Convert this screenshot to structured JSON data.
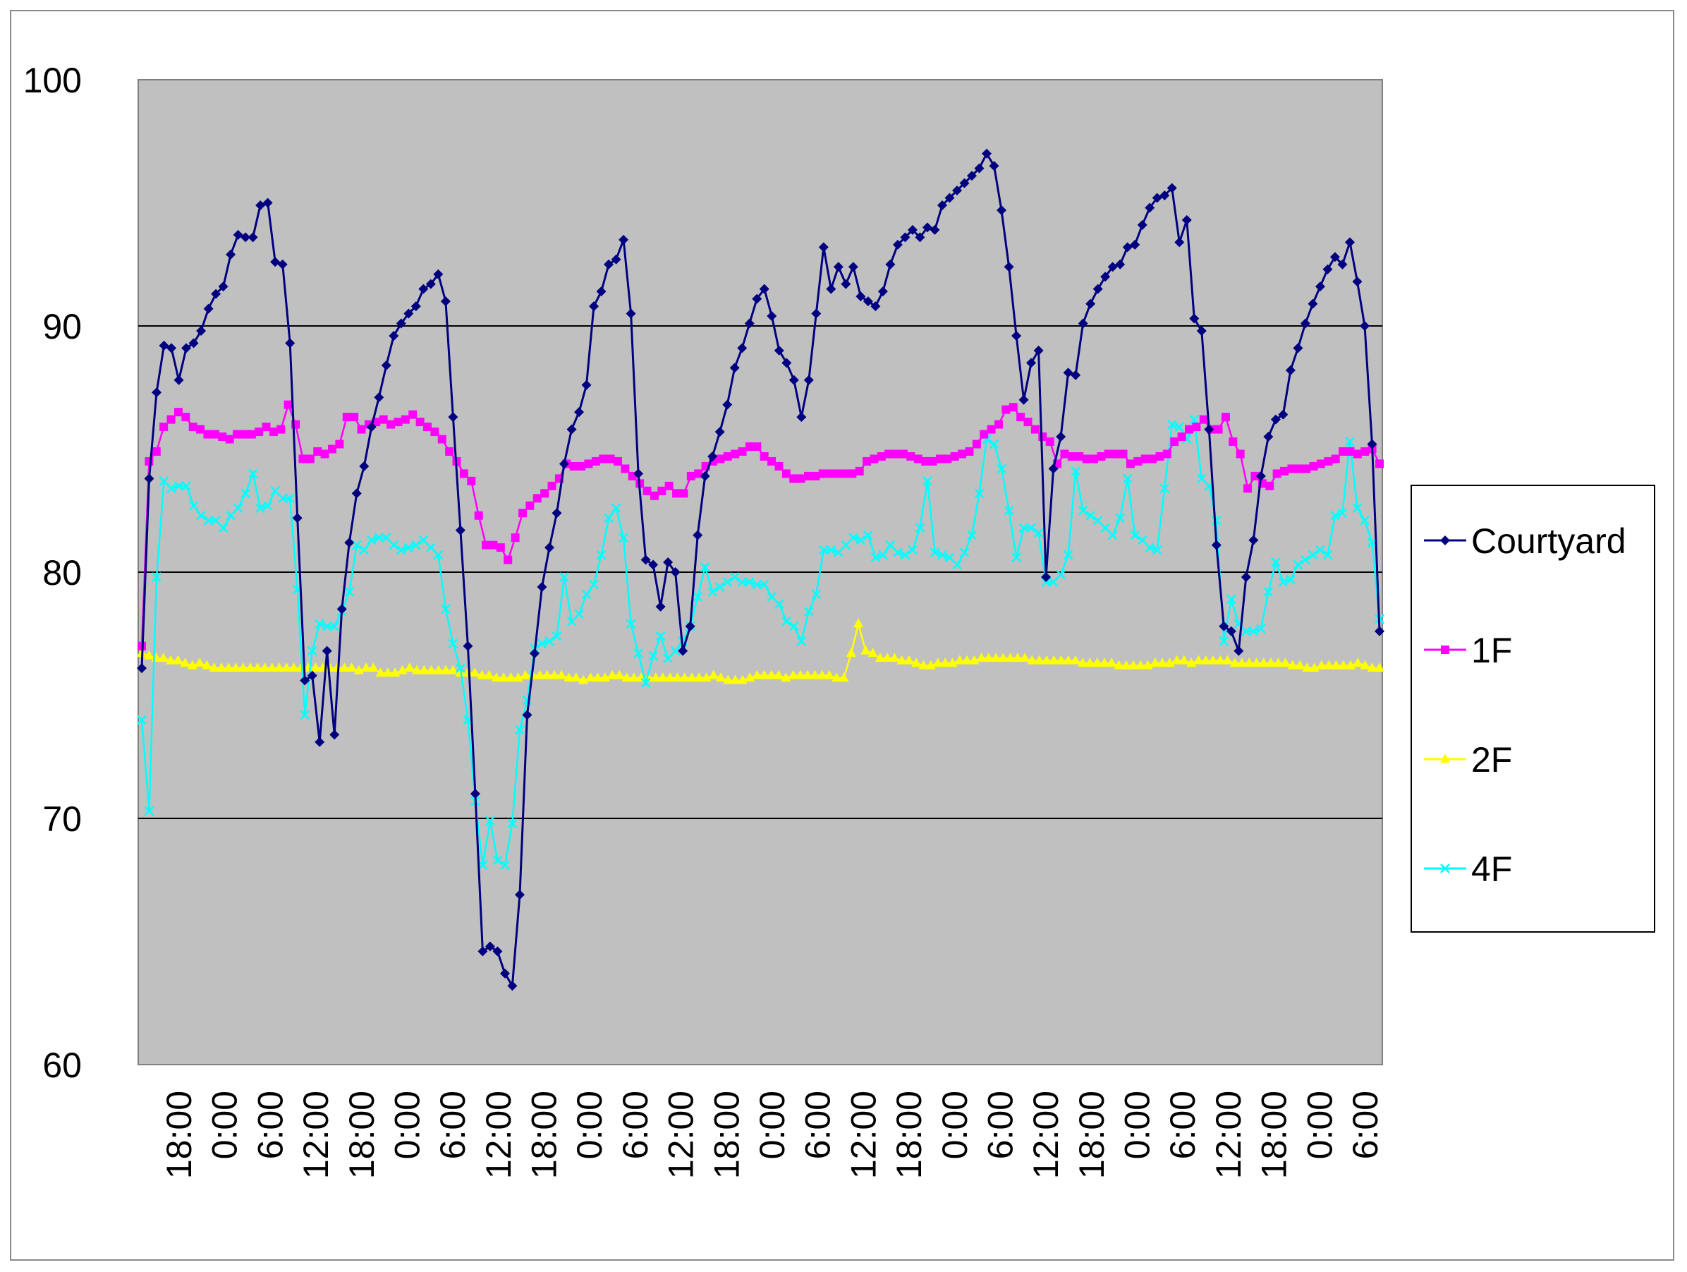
{
  "chart_data": {
    "type": "line",
    "title": "",
    "xlabel": "",
    "ylabel": "",
    "ylim": [
      60,
      100
    ],
    "yticks": [
      60,
      70,
      80,
      90,
      100
    ],
    "grid": true,
    "plot_background": "#c0c0c0",
    "legend_position": "right",
    "x_tick_labels": [
      "18:00",
      "0:00",
      "6:00",
      "12:00",
      "18:00",
      "0:00",
      "6:00",
      "12:00",
      "18:00",
      "0:00",
      "6:00",
      "12:00",
      "18:00",
      "0:00",
      "6:00",
      "12:00",
      "18:00",
      "0:00",
      "6:00",
      "12:00",
      "18:00",
      "0:00",
      "6:00",
      "12:00",
      "18:00",
      "0:00",
      "6:00"
    ],
    "series": [
      {
        "name": "Courtyard",
        "color": "#000080",
        "marker": "diamond",
        "values": [
          76.1,
          83.8,
          87.3,
          89.2,
          89.1,
          87.8,
          89.1,
          89.3,
          89.8,
          90.7,
          91.3,
          91.6,
          92.9,
          93.7,
          93.6,
          93.6,
          94.9,
          95.0,
          92.6,
          92.5,
          89.3,
          82.2,
          75.6,
          75.8,
          73.1,
          76.8,
          73.4,
          78.5,
          81.2,
          83.2,
          84.3,
          85.9,
          87.1,
          88.4,
          89.6,
          90.1,
          90.5,
          90.8,
          91.5,
          91.7,
          92.1,
          91.0,
          86.3,
          81.7,
          77.0,
          71.0,
          64.6,
          64.8,
          64.6,
          63.7,
          63.2,
          66.9,
          74.2,
          76.7,
          79.4,
          81.0,
          82.4,
          84.4,
          85.8,
          86.5,
          87.6,
          90.8,
          91.4,
          92.5,
          92.7,
          93.5,
          90.5,
          84.0,
          80.5,
          80.3,
          78.6,
          80.4,
          80.0,
          76.8,
          77.8,
          81.5,
          83.9,
          84.7,
          85.7,
          86.8,
          88.3,
          89.1,
          90.1,
          91.1,
          91.5,
          90.4,
          89.0,
          88.5,
          87.8,
          86.3,
          87.8,
          90.5,
          93.2,
          91.5,
          92.4,
          91.7,
          92.4,
          91.2,
          91.0,
          90.8,
          91.4,
          92.5,
          93.3,
          93.6,
          93.9,
          93.6,
          94.0,
          93.9,
          94.9,
          95.2,
          95.5,
          95.8,
          96.1,
          96.4,
          97.0,
          96.5,
          94.7,
          92.4,
          89.6,
          87.0,
          88.5,
          89.0,
          79.8,
          84.2,
          85.5,
          88.1,
          88.0,
          90.1,
          90.9,
          91.5,
          92.0,
          92.4,
          92.5,
          93.2,
          93.3,
          94.1,
          94.8,
          95.2,
          95.3,
          95.6,
          93.4,
          94.3,
          90.3,
          89.8,
          85.8,
          81.1,
          77.8,
          77.6,
          76.8,
          79.8,
          81.3,
          83.9,
          85.5,
          86.2,
          86.4,
          88.2,
          89.1,
          90.1,
          90.9,
          91.6,
          92.3,
          92.8,
          92.5,
          93.4,
          91.8,
          90.0,
          85.2,
          77.6
        ]
      },
      {
        "name": "1F",
        "color": "#ff00ff",
        "marker": "square",
        "values": [
          77.0,
          84.5,
          84.9,
          85.9,
          86.2,
          86.5,
          86.3,
          85.9,
          85.8,
          85.6,
          85.6,
          85.5,
          85.4,
          85.6,
          85.6,
          85.6,
          85.7,
          85.9,
          85.7,
          85.8,
          86.8,
          86.0,
          84.6,
          84.6,
          84.9,
          84.8,
          85.0,
          85.2,
          86.3,
          86.3,
          85.8,
          86.0,
          86.1,
          86.2,
          86.0,
          86.1,
          86.2,
          86.4,
          86.1,
          85.9,
          85.7,
          85.4,
          84.9,
          84.5,
          84.0,
          83.7,
          82.3,
          81.1,
          81.1,
          81.0,
          80.5,
          81.4,
          82.4,
          82.7,
          83.0,
          83.2,
          83.5,
          83.8,
          84.4,
          84.3,
          84.3,
          84.4,
          84.5,
          84.6,
          84.6,
          84.5,
          84.2,
          83.9,
          83.6,
          83.3,
          83.1,
          83.3,
          83.5,
          83.2,
          83.2,
          83.9,
          84.0,
          84.3,
          84.5,
          84.6,
          84.7,
          84.8,
          84.9,
          85.1,
          85.1,
          84.7,
          84.5,
          84.3,
          84.0,
          83.8,
          83.8,
          83.9,
          83.9,
          84.0,
          84.0,
          84.0,
          84.0,
          84.0,
          84.1,
          84.5,
          84.6,
          84.7,
          84.8,
          84.8,
          84.8,
          84.7,
          84.6,
          84.5,
          84.5,
          84.6,
          84.6,
          84.7,
          84.8,
          84.9,
          85.2,
          85.6,
          85.8,
          86.0,
          86.6,
          86.7,
          86.3,
          86.1,
          85.8,
          85.5,
          85.3,
          84.4,
          84.8,
          84.7,
          84.7,
          84.6,
          84.6,
          84.7,
          84.8,
          84.8,
          84.8,
          84.4,
          84.5,
          84.6,
          84.6,
          84.7,
          84.8,
          85.3,
          85.5,
          85.8,
          85.9,
          86.2,
          85.8,
          85.8,
          86.3,
          85.3,
          84.8,
          83.4,
          83.9,
          83.6,
          83.5,
          84.0,
          84.1,
          84.2,
          84.2,
          84.2,
          84.3,
          84.4,
          84.5,
          84.6,
          84.9,
          84.9,
          84.8,
          84.9,
          85.0,
          84.4
        ]
      },
      {
        "name": "2F",
        "color": "#ffff00",
        "marker": "triangle",
        "values": [
          76.7,
          76.6,
          76.5,
          76.5,
          76.4,
          76.4,
          76.3,
          76.2,
          76.3,
          76.2,
          76.1,
          76.1,
          76.1,
          76.1,
          76.1,
          76.1,
          76.1,
          76.1,
          76.1,
          76.1,
          76.1,
          76.1,
          76.1,
          76.1,
          76.1,
          76.1,
          76.1,
          76.1,
          76.1,
          76.1,
          76.0,
          76.1,
          76.1,
          75.9,
          75.9,
          75.9,
          76.0,
          76.1,
          76.0,
          76.0,
          76.0,
          76.0,
          76.0,
          76.0,
          75.9,
          75.9,
          75.9,
          75.8,
          75.8,
          75.7,
          75.7,
          75.7,
          75.7,
          75.8,
          75.8,
          75.8,
          75.8,
          75.8,
          75.8,
          75.7,
          75.7,
          75.6,
          75.7,
          75.7,
          75.7,
          75.8,
          75.8,
          75.7,
          75.7,
          75.7,
          75.7,
          75.7,
          75.7,
          75.7,
          75.7,
          75.7,
          75.7,
          75.7,
          75.7,
          75.8,
          75.7,
          75.6,
          75.6,
          75.6,
          75.7,
          75.8,
          75.8,
          75.8,
          75.8,
          75.7,
          75.8,
          75.8,
          75.8,
          75.8,
          75.8,
          75.8,
          75.7,
          75.7,
          76.7,
          77.9,
          76.8,
          76.7,
          76.5,
          76.5,
          76.5,
          76.4,
          76.4,
          76.3,
          76.2,
          76.2,
          76.3,
          76.3,
          76.3,
          76.4,
          76.4,
          76.4,
          76.5,
          76.5,
          76.5,
          76.5,
          76.5,
          76.5,
          76.5,
          76.4,
          76.4,
          76.4,
          76.4,
          76.4,
          76.4,
          76.4,
          76.3,
          76.3,
          76.3,
          76.3,
          76.3,
          76.2,
          76.2,
          76.2,
          76.2,
          76.2,
          76.3,
          76.3,
          76.3,
          76.4,
          76.4,
          76.3,
          76.4,
          76.4,
          76.4,
          76.4,
          76.4,
          76.3,
          76.3,
          76.3,
          76.3,
          76.3,
          76.3,
          76.3,
          76.3,
          76.2,
          76.2,
          76.1,
          76.1,
          76.2,
          76.2,
          76.2,
          76.2,
          76.2,
          76.3,
          76.2,
          76.1,
          76.1
        ]
      },
      {
        "name": "4F",
        "color": "#00ffff",
        "marker": "x",
        "values": [
          74.0,
          70.3,
          79.8,
          83.7,
          83.4,
          83.5,
          83.5,
          82.7,
          82.3,
          82.1,
          82.1,
          81.8,
          82.3,
          82.6,
          83.2,
          84.0,
          82.6,
          82.7,
          83.3,
          83.0,
          83.0,
          79.3,
          74.2,
          76.8,
          77.9,
          77.8,
          77.8,
          78.4,
          79.2,
          81.1,
          80.9,
          81.3,
          81.4,
          81.4,
          81.1,
          80.9,
          81.0,
          81.1,
          81.3,
          81.0,
          80.7,
          78.5,
          77.1,
          76.1,
          74.0,
          70.7,
          68.1,
          69.9,
          68.3,
          68.1,
          69.8,
          73.6,
          74.8,
          76.9,
          77.1,
          77.2,
          77.4,
          79.8,
          78.0,
          78.3,
          79.1,
          79.5,
          80.7,
          82.2,
          82.6,
          81.4,
          77.9,
          76.7,
          75.5,
          76.6,
          77.4,
          76.5,
          76.8,
          77.2,
          77.8,
          79.0,
          80.2,
          79.2,
          79.4,
          79.6,
          79.8,
          79.6,
          79.6,
          79.5,
          79.5,
          79.0,
          78.7,
          78.0,
          77.8,
          77.2,
          78.4,
          79.1,
          80.9,
          80.9,
          80.8,
          81.1,
          81.4,
          81.3,
          81.5,
          80.6,
          80.7,
          81.1,
          80.8,
          80.7,
          80.9,
          81.8,
          83.7,
          80.8,
          80.7,
          80.6,
          80.3,
          80.8,
          81.5,
          83.2,
          85.4,
          85.2,
          84.2,
          82.5,
          80.6,
          81.8,
          81.8,
          81.6,
          79.6,
          79.6,
          79.9,
          80.7,
          84.1,
          82.5,
          82.3,
          82.1,
          81.8,
          81.5,
          82.2,
          83.8,
          81.5,
          81.3,
          81.0,
          80.9,
          83.4,
          86.0,
          85.9,
          85.4,
          86.2,
          83.8,
          83.5,
          82.1,
          77.2,
          78.9,
          77.9,
          77.6,
          77.6,
          77.7,
          79.2,
          80.4,
          79.6,
          79.7,
          80.3,
          80.5,
          80.7,
          80.9,
          80.7,
          82.3,
          82.4,
          85.3,
          82.6,
          82.1,
          81.2,
          78.1
        ]
      }
    ]
  }
}
